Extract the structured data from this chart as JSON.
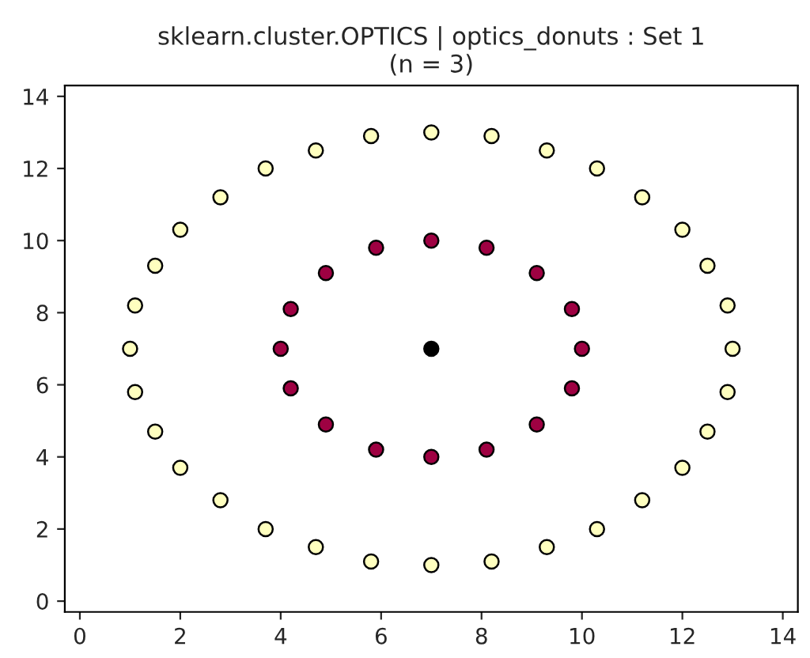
{
  "chart_data": {
    "type": "scatter",
    "title": "sklearn.cluster.OPTICS | optics_donuts : Set 1\n(n = 3)",
    "xlim": [
      -0.3,
      14.3
    ],
    "ylim": [
      -0.3,
      14.3
    ],
    "xticks": [
      0,
      2,
      4,
      6,
      8,
      10,
      12,
      14
    ],
    "yticks": [
      0,
      2,
      4,
      6,
      8,
      10,
      12,
      14
    ],
    "grid": false,
    "marker": "circle",
    "legend": false,
    "series": [
      {
        "color": "#ffffbf",
        "x": [
          13,
          12.9,
          12.5,
          12,
          11.2,
          10.3,
          9.3,
          8.2,
          7,
          5.8,
          4.7,
          3.7,
          2.8,
          2,
          1.5,
          1.1,
          1,
          1.1,
          1.5,
          2,
          2.8,
          3.7,
          4.7,
          5.8,
          7,
          8.2,
          9.3,
          10.3,
          11.2,
          12,
          12.5,
          12.9
        ],
        "values": [
          7,
          8.2,
          9.3,
          10.3,
          11.2,
          12,
          12.5,
          12.9,
          13,
          12.9,
          12.5,
          12,
          11.2,
          10.3,
          9.3,
          8.2,
          7,
          5.8,
          4.7,
          3.7,
          2.8,
          2,
          1.5,
          1.1,
          1,
          1.1,
          1.5,
          2,
          2.8,
          3.7,
          4.7,
          5.8
        ]
      },
      {
        "color": "#9e0142",
        "x": [
          10,
          9.8,
          9.1,
          8.1,
          7,
          5.9,
          4.9,
          4.2,
          4,
          4.2,
          4.9,
          5.9,
          7,
          8.1,
          9.1,
          9.8
        ],
        "values": [
          7,
          8.1,
          9.1,
          9.8,
          10,
          9.8,
          9.1,
          8.1,
          7,
          5.9,
          4.9,
          4.2,
          4,
          4.2,
          4.9,
          5.9
        ]
      },
      {
        "color": "#000000",
        "x": [
          7
        ],
        "values": [
          7
        ]
      }
    ]
  }
}
